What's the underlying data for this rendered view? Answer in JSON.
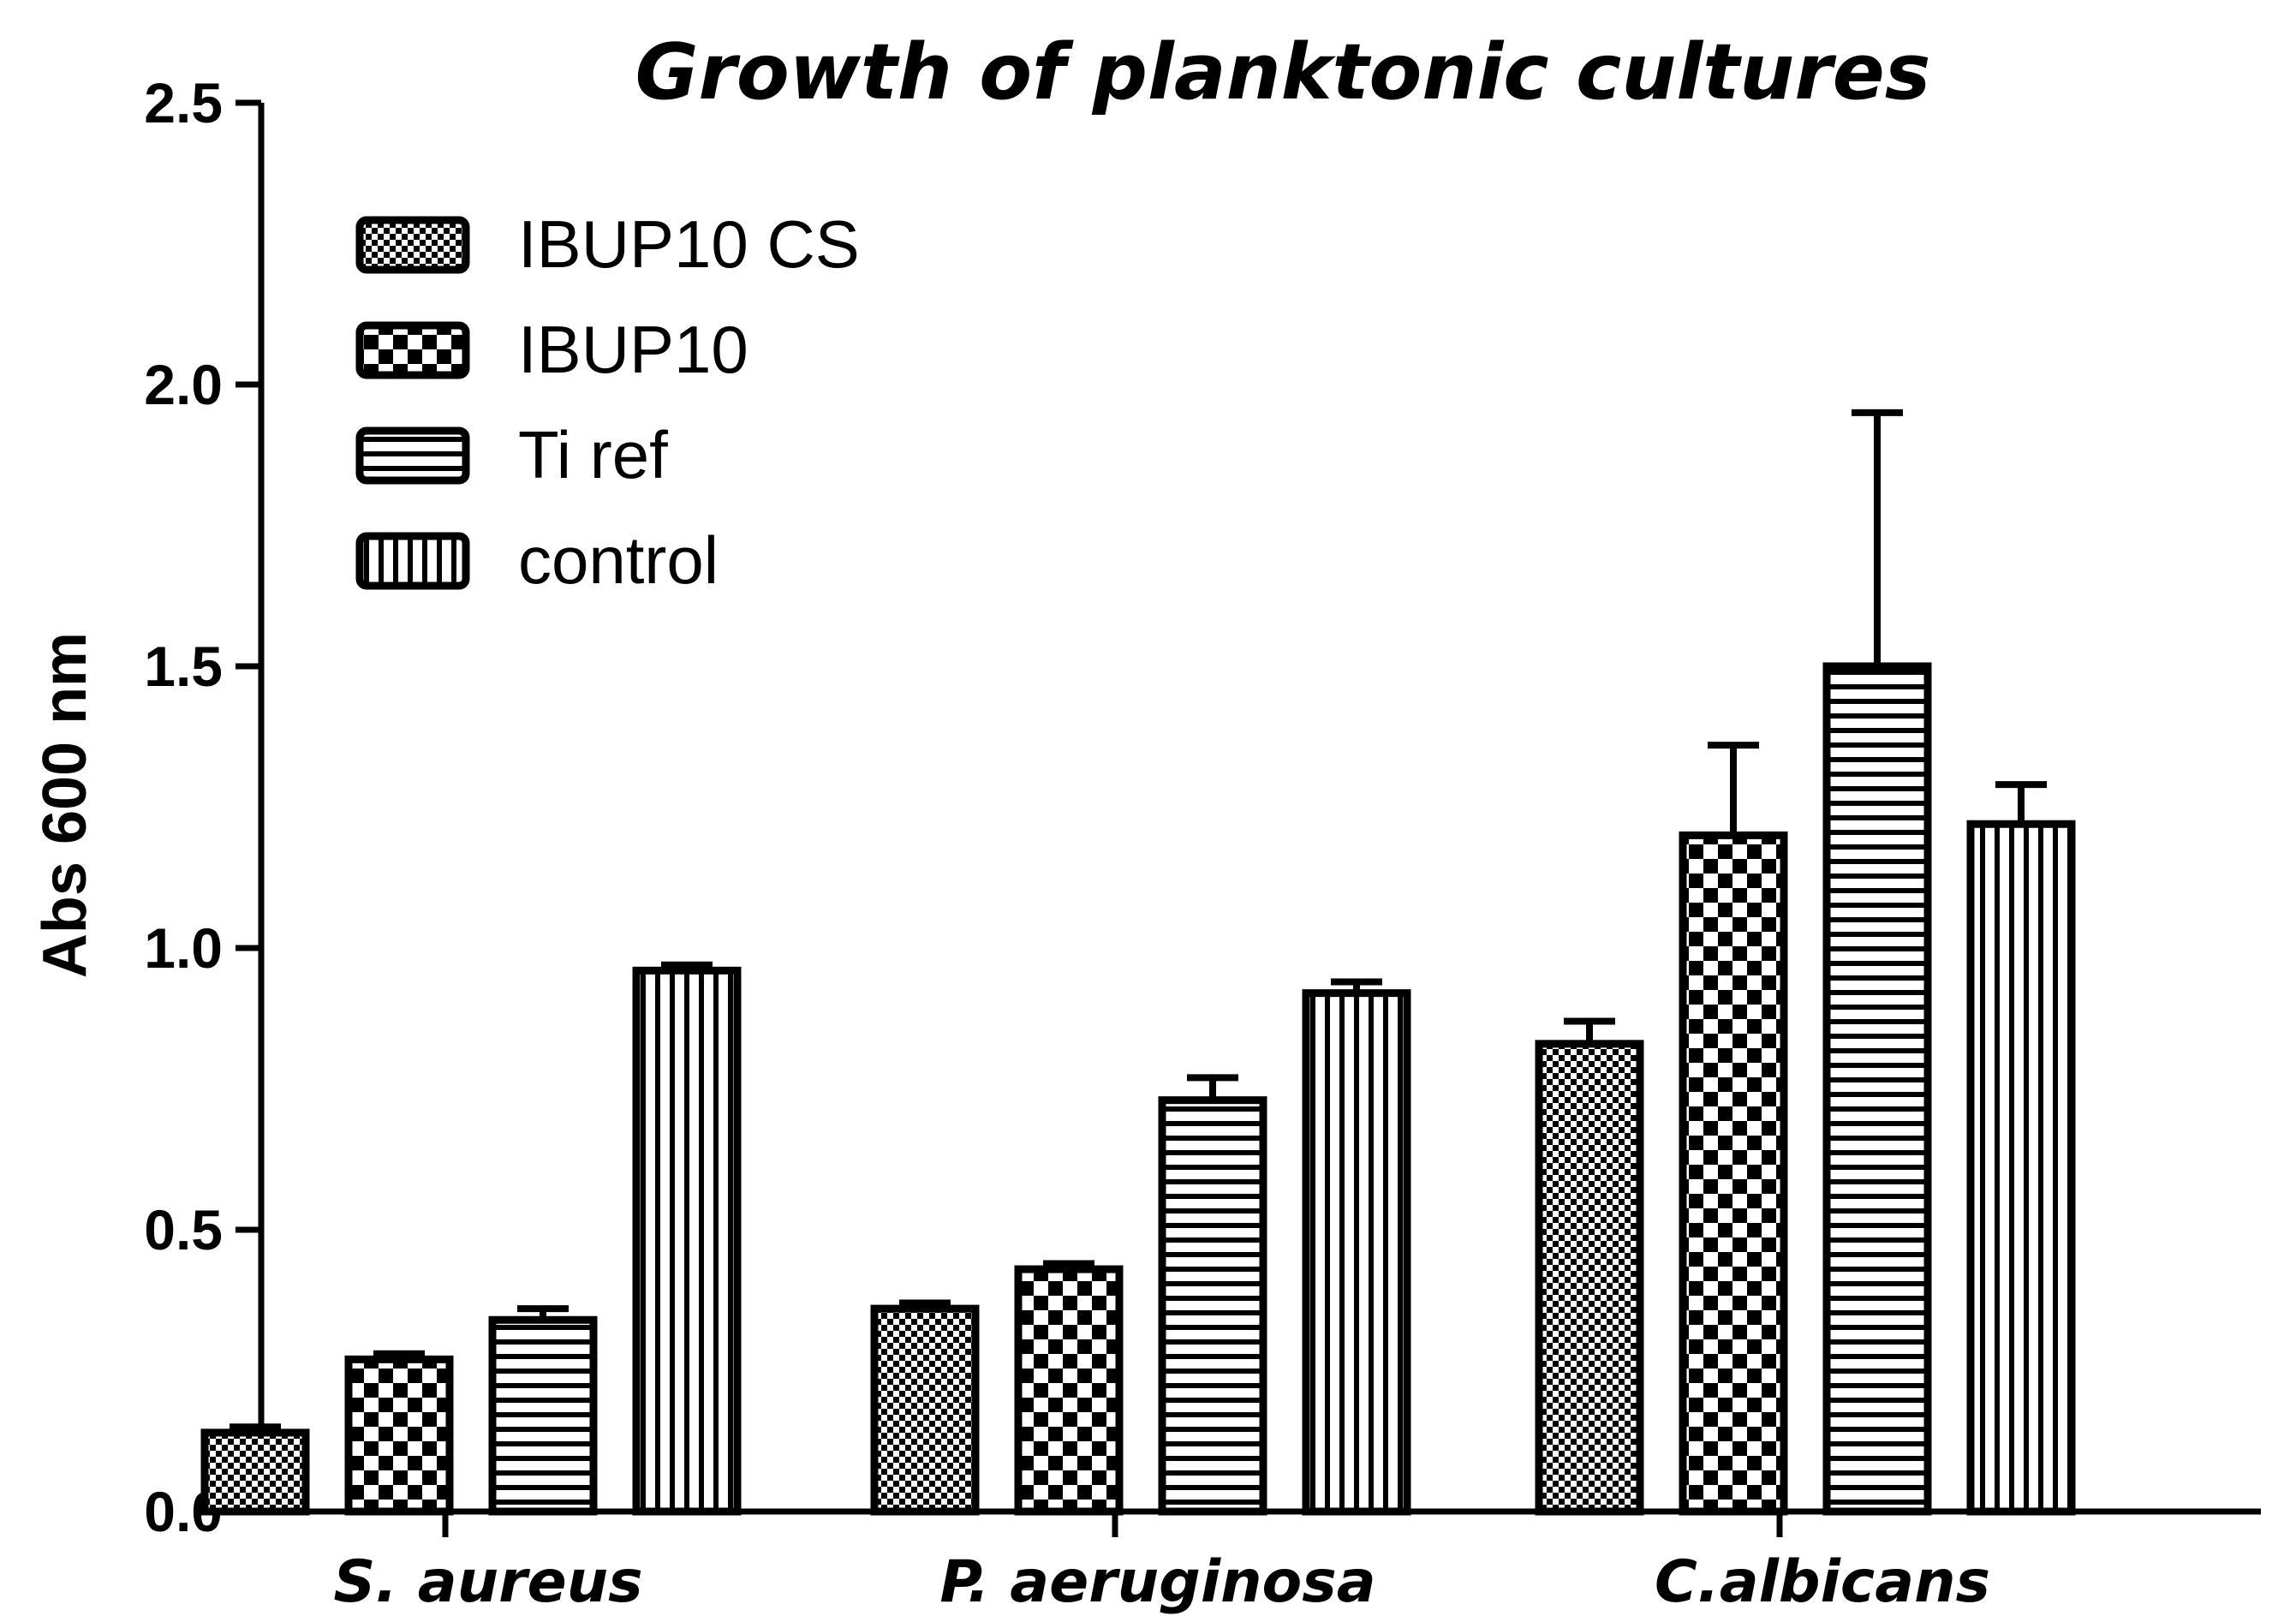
{
  "chart_data": {
    "type": "bar",
    "title": "Growth of planktonic cultures",
    "xlabel": "",
    "ylabel": "Abs 600 nm",
    "ylim": [
      0,
      2.5
    ],
    "yticks": [
      "0.0",
      "0.5",
      "1.0",
      "1.5",
      "2.0",
      "2.5"
    ],
    "categories": [
      "S. aureus",
      "P. aeruginosa",
      "C.albicans"
    ],
    "series": [
      {
        "name": "IBUP10 CS",
        "pattern": "fine-check",
        "values": [
          0.14,
          0.36,
          0.83
        ],
        "errors": [
          0.01,
          0.01,
          0.04
        ]
      },
      {
        "name": "IBUP10",
        "pattern": "checker",
        "values": [
          0.27,
          0.43,
          1.2
        ],
        "errors": [
          0.01,
          0.01,
          0.16
        ]
      },
      {
        "name": "Ti ref",
        "pattern": "horizontal-lines",
        "values": [
          0.34,
          0.73,
          1.5
        ],
        "errors": [
          0.02,
          0.04,
          0.45
        ]
      },
      {
        "name": "control",
        "pattern": "vertical-lines",
        "values": [
          0.96,
          0.92,
          1.22
        ],
        "errors": [
          0.01,
          0.02,
          0.07
        ]
      }
    ],
    "legend_position": "top-left",
    "grid": false,
    "colors": {
      "ink": "#000000",
      "background": "#ffffff"
    }
  }
}
